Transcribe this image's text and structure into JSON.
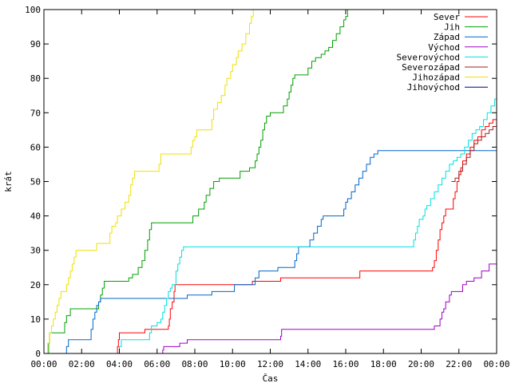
{
  "chart_data": {
    "type": "line",
    "step": true,
    "xlabel": "Čas",
    "ylabel": "krát",
    "xlim": [
      0,
      24
    ],
    "ylim": [
      0,
      100
    ],
    "x_ticks": [
      {
        "value": 0,
        "label": "00:00"
      },
      {
        "value": 2,
        "label": "02:00"
      },
      {
        "value": 4,
        "label": "04:00"
      },
      {
        "value": 6,
        "label": "06:00"
      },
      {
        "value": 8,
        "label": "08:00"
      },
      {
        "value": 10,
        "label": "10:00"
      },
      {
        "value": 12,
        "label": "12:00"
      },
      {
        "value": 14,
        "label": "14:00"
      },
      {
        "value": 16,
        "label": "16:00"
      },
      {
        "value": 18,
        "label": "18:00"
      },
      {
        "value": 20,
        "label": "20:00"
      },
      {
        "value": 22,
        "label": "22:00"
      },
      {
        "value": 24,
        "label": "00:00"
      }
    ],
    "y_ticks": [
      0,
      10,
      20,
      30,
      40,
      50,
      60,
      70,
      80,
      90,
      100
    ],
    "legend_position": "top-right",
    "grid": false,
    "series": [
      {
        "name": "Sever",
        "color": "#ff0000",
        "points": [
          [
            3.85,
            0
          ],
          [
            3.9,
            2
          ],
          [
            3.95,
            4
          ],
          [
            4.0,
            6
          ],
          [
            5.3,
            6
          ],
          [
            5.35,
            7
          ],
          [
            6.5,
            7
          ],
          [
            6.6,
            8
          ],
          [
            6.65,
            10
          ],
          [
            6.7,
            13
          ],
          [
            6.8,
            15
          ],
          [
            6.9,
            18
          ],
          [
            6.95,
            20
          ],
          [
            11.0,
            20
          ],
          [
            11.05,
            21
          ],
          [
            12.5,
            21
          ],
          [
            12.55,
            22
          ],
          [
            16.7,
            22
          ],
          [
            16.75,
            24
          ],
          [
            20.5,
            24
          ],
          [
            20.6,
            25
          ],
          [
            20.7,
            27
          ],
          [
            20.8,
            30
          ],
          [
            20.9,
            33
          ],
          [
            21.0,
            36
          ],
          [
            21.1,
            38
          ],
          [
            21.2,
            40
          ],
          [
            21.3,
            42
          ],
          [
            21.6,
            42
          ],
          [
            21.7,
            45
          ],
          [
            21.8,
            47
          ],
          [
            21.9,
            50
          ],
          [
            22.0,
            52
          ],
          [
            22.1,
            54
          ],
          [
            22.2,
            56
          ],
          [
            22.4,
            58
          ],
          [
            22.6,
            60
          ],
          [
            22.8,
            62
          ],
          [
            23.0,
            63
          ],
          [
            23.2,
            65
          ],
          [
            23.4,
            66
          ],
          [
            23.6,
            67
          ],
          [
            23.8,
            68
          ],
          [
            24.0,
            69
          ]
        ]
      },
      {
        "name": "Jih",
        "color": "#00a000",
        "points": [
          [
            0.2,
            0
          ],
          [
            0.25,
            3
          ],
          [
            0.3,
            6
          ],
          [
            1.0,
            6
          ],
          [
            1.1,
            9
          ],
          [
            1.2,
            11
          ],
          [
            1.4,
            13
          ],
          [
            2.8,
            13
          ],
          [
            2.9,
            15
          ],
          [
            3.0,
            17
          ],
          [
            3.1,
            19
          ],
          [
            3.2,
            21
          ],
          [
            4.4,
            21
          ],
          [
            4.5,
            22
          ],
          [
            4.7,
            23
          ],
          [
            5.0,
            25
          ],
          [
            5.2,
            27
          ],
          [
            5.35,
            30
          ],
          [
            5.5,
            33
          ],
          [
            5.6,
            36
          ],
          [
            5.7,
            38
          ],
          [
            7.8,
            38
          ],
          [
            7.9,
            40
          ],
          [
            8.2,
            42
          ],
          [
            8.5,
            44
          ],
          [
            8.6,
            46
          ],
          [
            8.8,
            48
          ],
          [
            9.0,
            50
          ],
          [
            9.3,
            51
          ],
          [
            10.3,
            51
          ],
          [
            10.4,
            53
          ],
          [
            10.9,
            54
          ],
          [
            11.2,
            56
          ],
          [
            11.3,
            58
          ],
          [
            11.4,
            60
          ],
          [
            11.5,
            62
          ],
          [
            11.6,
            65
          ],
          [
            11.7,
            67
          ],
          [
            11.8,
            69
          ],
          [
            12.0,
            70
          ],
          [
            12.6,
            70
          ],
          [
            12.7,
            72
          ],
          [
            12.9,
            74
          ],
          [
            13.0,
            76
          ],
          [
            13.1,
            78
          ],
          [
            13.2,
            80
          ],
          [
            13.3,
            81
          ],
          [
            13.9,
            81
          ],
          [
            14.0,
            83
          ],
          [
            14.2,
            85
          ],
          [
            14.4,
            86
          ],
          [
            14.7,
            87
          ],
          [
            14.9,
            88
          ],
          [
            15.1,
            89
          ],
          [
            15.3,
            91
          ],
          [
            15.5,
            93
          ],
          [
            15.7,
            95
          ],
          [
            15.9,
            97
          ],
          [
            16.0,
            98
          ],
          [
            16.1,
            100
          ]
        ]
      },
      {
        "name": "Západ",
        "color": "#0066cc",
        "points": [
          [
            1.15,
            0
          ],
          [
            1.2,
            2
          ],
          [
            1.3,
            4
          ],
          [
            2.4,
            4
          ],
          [
            2.5,
            7
          ],
          [
            2.6,
            10
          ],
          [
            2.7,
            12
          ],
          [
            2.8,
            14
          ],
          [
            2.9,
            15
          ],
          [
            3.0,
            16
          ],
          [
            7.5,
            16
          ],
          [
            7.6,
            17
          ],
          [
            8.8,
            17
          ],
          [
            8.9,
            18
          ],
          [
            10.0,
            18
          ],
          [
            10.1,
            20
          ],
          [
            11.1,
            20
          ],
          [
            11.2,
            22
          ],
          [
            11.4,
            24
          ],
          [
            12.3,
            24
          ],
          [
            12.4,
            25
          ],
          [
            13.2,
            25
          ],
          [
            13.3,
            27
          ],
          [
            13.4,
            29
          ],
          [
            13.5,
            31
          ],
          [
            14.0,
            31
          ],
          [
            14.1,
            33
          ],
          [
            14.3,
            35
          ],
          [
            14.5,
            37
          ],
          [
            14.7,
            39
          ],
          [
            14.8,
            40
          ],
          [
            15.8,
            40
          ],
          [
            15.9,
            42
          ],
          [
            16.0,
            44
          ],
          [
            16.1,
            45
          ],
          [
            16.3,
            47
          ],
          [
            16.5,
            49
          ],
          [
            16.7,
            51
          ],
          [
            16.9,
            53
          ],
          [
            17.1,
            55
          ],
          [
            17.3,
            57
          ],
          [
            17.5,
            58
          ],
          [
            17.7,
            59
          ],
          [
            24.0,
            59
          ]
        ]
      },
      {
        "name": "Východ",
        "color": "#a000c8",
        "points": [
          [
            6.25,
            0
          ],
          [
            6.3,
            1
          ],
          [
            6.35,
            2
          ],
          [
            7.1,
            2
          ],
          [
            7.2,
            3
          ],
          [
            7.5,
            3
          ],
          [
            7.6,
            4
          ],
          [
            12.5,
            4
          ],
          [
            12.55,
            5
          ],
          [
            12.6,
            7
          ],
          [
            20.6,
            7
          ],
          [
            20.7,
            8
          ],
          [
            21.0,
            10
          ],
          [
            21.1,
            12
          ],
          [
            21.2,
            13
          ],
          [
            21.3,
            15
          ],
          [
            21.5,
            17
          ],
          [
            21.6,
            18
          ],
          [
            22.1,
            18
          ],
          [
            22.2,
            20
          ],
          [
            22.4,
            21
          ],
          [
            22.8,
            22
          ],
          [
            23.2,
            24
          ],
          [
            23.6,
            26
          ],
          [
            24.0,
            27
          ]
        ]
      },
      {
        "name": "Severovýchod",
        "color": "#00e0e0",
        "points": [
          [
            3.95,
            0
          ],
          [
            4.0,
            2
          ],
          [
            4.1,
            4
          ],
          [
            5.5,
            4
          ],
          [
            5.6,
            6
          ],
          [
            5.7,
            8
          ],
          [
            6.0,
            9
          ],
          [
            6.2,
            10
          ],
          [
            6.3,
            12
          ],
          [
            6.4,
            14
          ],
          [
            6.5,
            16
          ],
          [
            6.6,
            18
          ],
          [
            6.7,
            19
          ],
          [
            6.8,
            20
          ],
          [
            7.0,
            24
          ],
          [
            7.1,
            26
          ],
          [
            7.2,
            28
          ],
          [
            7.3,
            30
          ],
          [
            7.4,
            31
          ],
          [
            8.5,
            31
          ],
          [
            8.6,
            31
          ],
          [
            19.5,
            31
          ],
          [
            19.6,
            33
          ],
          [
            19.7,
            35
          ],
          [
            19.8,
            37
          ],
          [
            19.9,
            39
          ],
          [
            20.1,
            40
          ],
          [
            20.2,
            42
          ],
          [
            20.3,
            43
          ],
          [
            20.5,
            45
          ],
          [
            20.7,
            47
          ],
          [
            20.9,
            49
          ],
          [
            21.1,
            51
          ],
          [
            21.3,
            53
          ],
          [
            21.5,
            55
          ],
          [
            21.7,
            56
          ],
          [
            21.9,
            57
          ],
          [
            22.1,
            58
          ],
          [
            22.3,
            60
          ],
          [
            22.5,
            62
          ],
          [
            22.7,
            64
          ],
          [
            22.9,
            65
          ],
          [
            23.1,
            66
          ],
          [
            23.3,
            68
          ],
          [
            23.5,
            70
          ],
          [
            23.7,
            72
          ],
          [
            23.9,
            74
          ],
          [
            24.0,
            76
          ]
        ]
      },
      {
        "name": "Severozápad",
        "color": "#a02020",
        "points": [
          [
            21.6,
            50
          ],
          [
            21.8,
            51
          ],
          [
            22.0,
            53
          ],
          [
            22.2,
            55
          ],
          [
            22.4,
            57
          ],
          [
            22.6,
            59
          ],
          [
            22.8,
            61
          ],
          [
            23.0,
            62
          ],
          [
            23.2,
            63
          ],
          [
            23.4,
            64
          ],
          [
            23.6,
            65
          ],
          [
            23.8,
            66
          ],
          [
            24.0,
            67
          ]
        ]
      },
      {
        "name": "Jihozápad",
        "color": "#f0e000",
        "points": [
          [
            0.1,
            0
          ],
          [
            0.2,
            3
          ],
          [
            0.3,
            6
          ],
          [
            0.4,
            8
          ],
          [
            0.5,
            10
          ],
          [
            0.6,
            12
          ],
          [
            0.7,
            14
          ],
          [
            0.8,
            16
          ],
          [
            0.9,
            18
          ],
          [
            1.1,
            18
          ],
          [
            1.2,
            20
          ],
          [
            1.3,
            22
          ],
          [
            1.4,
            24
          ],
          [
            1.5,
            26
          ],
          [
            1.6,
            28
          ],
          [
            1.7,
            30
          ],
          [
            2.7,
            30
          ],
          [
            2.8,
            32
          ],
          [
            3.4,
            32
          ],
          [
            3.5,
            35
          ],
          [
            3.6,
            37
          ],
          [
            3.8,
            38
          ],
          [
            3.9,
            40
          ],
          [
            4.1,
            42
          ],
          [
            4.3,
            44
          ],
          [
            4.5,
            46
          ],
          [
            4.6,
            49
          ],
          [
            4.7,
            51
          ],
          [
            4.8,
            53
          ],
          [
            6.0,
            53
          ],
          [
            6.1,
            55
          ],
          [
            6.2,
            58
          ],
          [
            7.7,
            58
          ],
          [
            7.8,
            60
          ],
          [
            7.9,
            62
          ],
          [
            8.0,
            63
          ],
          [
            8.1,
            65
          ],
          [
            8.8,
            65
          ],
          [
            8.9,
            68
          ],
          [
            9.0,
            71
          ],
          [
            9.2,
            73
          ],
          [
            9.4,
            75
          ],
          [
            9.6,
            78
          ],
          [
            9.7,
            80
          ],
          [
            9.9,
            82
          ],
          [
            10.0,
            84
          ],
          [
            10.2,
            86
          ],
          [
            10.3,
            88
          ],
          [
            10.5,
            90
          ],
          [
            10.7,
            93
          ],
          [
            10.9,
            96
          ],
          [
            11.0,
            98
          ],
          [
            11.1,
            100
          ]
        ]
      },
      {
        "name": "Jihovýchod",
        "color": "#000080",
        "points": []
      }
    ]
  }
}
